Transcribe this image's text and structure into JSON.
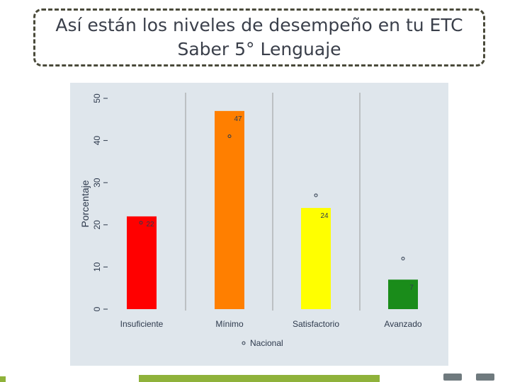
{
  "header": {
    "title_line1": "Así están los niveles de desempeño en tu ETC",
    "title_line2": "Saber 5° Lenguaje"
  },
  "colors": {
    "panel_bg": "#dfe6ec",
    "grid": "#9a9a9a",
    "text": "#2e3a4d",
    "accent_green": "#8fb23a"
  },
  "chart_data": {
    "type": "bar",
    "title": "",
    "xlabel": "",
    "ylabel": "Porcentaje",
    "ylim": [
      0,
      50
    ],
    "yticks": [
      0,
      10,
      20,
      30,
      40,
      50
    ],
    "categories": [
      "Insuficiente",
      "Mínimo",
      "Satisfactorio",
      "Avanzado"
    ],
    "values": [
      22,
      47,
      24,
      7
    ],
    "bar_colors": [
      "#ff0000",
      "#ff7f00",
      "#ffff00",
      "#1a8c1a"
    ],
    "data_labels": [
      "22",
      "47",
      "24",
      "7"
    ],
    "reference_series": {
      "name": "Nacional",
      "values": [
        20.5,
        41,
        27,
        12
      ]
    },
    "legend": {
      "position": "bottom",
      "label": "Nacional"
    },
    "grid": "vertical"
  }
}
